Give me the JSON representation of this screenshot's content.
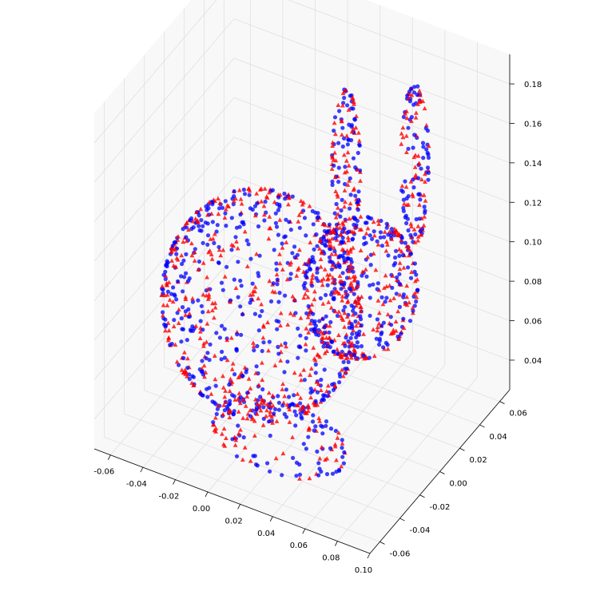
{
  "chart_data": {
    "type": "scatter",
    "projection": "3d",
    "title": "",
    "xlabel": "",
    "ylabel": "",
    "zlabel": "",
    "grid": true,
    "legend": "none",
    "xlim": [
      -0.07,
      0.1
    ],
    "ylim": [
      -0.07,
      0.07
    ],
    "zlim": [
      0.025,
      0.195
    ],
    "x_ticks": [
      "-0.06",
      "-0.04",
      "-0.02",
      "0.00",
      "0.02",
      "0.04",
      "0.06",
      "0.08",
      "0.10"
    ],
    "y_ticks": [
      "-0.06",
      "-0.04",
      "-0.02",
      "0.00",
      "0.02",
      "0.04",
      "0.06"
    ],
    "z_ticks": [
      "0.04",
      "0.06",
      "0.08",
      "0.10",
      "0.12",
      "0.14",
      "0.16",
      "0.18"
    ],
    "series": [
      {
        "marker": "circle",
        "color": "#0000ff",
        "description_points": "dense point cloud of a bunny-shaped object"
      },
      {
        "marker": "triangle",
        "color": "#ff0000",
        "description_points": "dense point cloud of a bunny-shaped object (overlaid)"
      }
    ]
  },
  "colors": {
    "pane": "#f2f2f2",
    "grid": "#e0e0e0",
    "axis": "#000000",
    "series_a": "#0000ff",
    "series_b": "#ff0000"
  }
}
